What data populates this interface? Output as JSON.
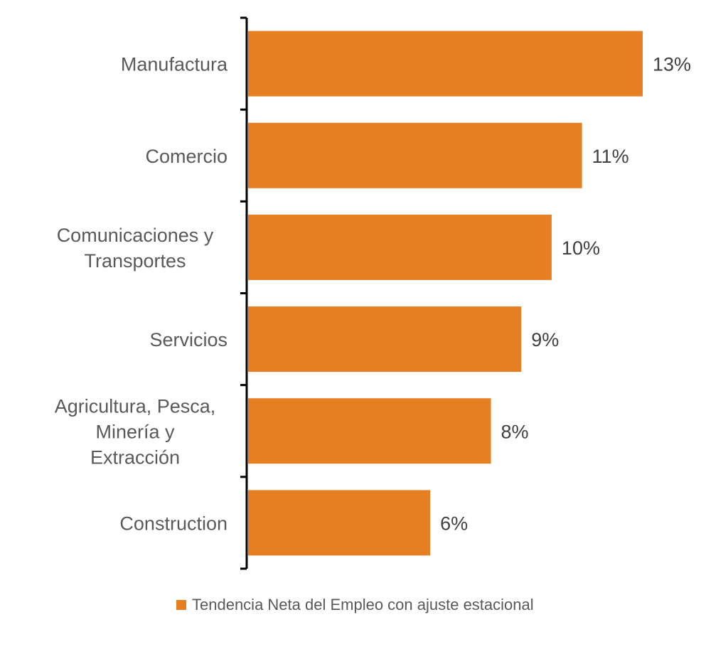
{
  "chart_data": {
    "type": "bar",
    "orientation": "horizontal",
    "categories": [
      [
        "Manufactura"
      ],
      [
        "Comercio"
      ],
      [
        "Comunicaciones y",
        "Transportes"
      ],
      [
        "Servicios"
      ],
      [
        "Agricultura, Pesca,",
        "Minería y",
        "Extracción"
      ],
      [
        "Construction"
      ]
    ],
    "series": [
      {
        "name": "Tendencia Neta del Empleo con ajuste estacional",
        "values": [
          13,
          11,
          10,
          9,
          8,
          6
        ],
        "labels": [
          "13%",
          "11%",
          "10%",
          "9%",
          "8%",
          "6%"
        ]
      }
    ],
    "xlim": [
      0,
      13
    ],
    "grid": false,
    "legend_position": "bottom",
    "bar_color": "#E67E22",
    "axis_color": "#000000"
  }
}
